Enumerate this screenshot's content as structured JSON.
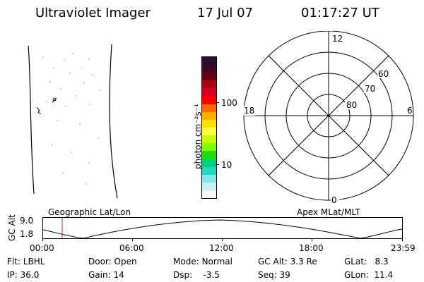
{
  "header": {
    "title": "Ultraviolet Imager",
    "date": "17 Jul 07",
    "time": "01:17:27 UT"
  },
  "colorbar": {
    "units_label": "photon cm⁻²s⁻¹",
    "ticks": [
      "100",
      "10"
    ],
    "colors": [
      "#2b0d2e",
      "#3b0a2a",
      "#6b0010",
      "#a80010",
      "#d4001c",
      "#ff0000",
      "#ff6a00",
      "#ffb000",
      "#ffe000",
      "#ffff40",
      "#c8ff00",
      "#80ff00",
      "#20e000",
      "#00d080",
      "#20d8c8",
      "#80e8e8",
      "#c8f0f0",
      "#f0f8f8"
    ]
  },
  "polar_plot": {
    "labels": {
      "top": "12",
      "bottom": "0",
      "left": "18",
      "right": "6"
    },
    "rings": [
      "60",
      "70",
      "80"
    ]
  },
  "timeline": {
    "left_title": "Geographic Lat/Lon",
    "right_title": "Apex MLat/MLT",
    "ylabel": "GC Alt",
    "y_ticks": [
      "9.0",
      "1.8"
    ],
    "x_ticks": [
      "00:00",
      "06:00",
      "12:00",
      "18:00",
      "23:59"
    ],
    "marker_color": "#cc2222"
  },
  "status": {
    "row1": [
      {
        "label": "Flt:",
        "value": "LBHL"
      },
      {
        "label": "Door:",
        "value": "Open"
      },
      {
        "label": "Mode:",
        "value": "Normal"
      },
      {
        "label": "GC Alt:",
        "value": "3.3 Re"
      },
      {
        "label": "GLat:",
        "value": "8.3"
      }
    ],
    "row2": [
      {
        "label": "IP:",
        "value": "36.0"
      },
      {
        "label": "Gain:",
        "value": "14"
      },
      {
        "label": "Dsp:",
        "value": "-3.5"
      },
      {
        "label": "Seq:",
        "value": "39"
      },
      {
        "label": "GLon:",
        "value": "11.4"
      }
    ]
  }
}
